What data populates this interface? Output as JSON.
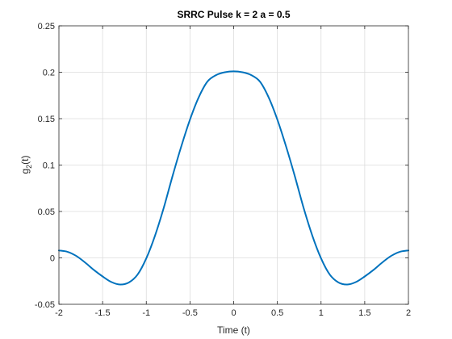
{
  "chart_data": {
    "type": "line",
    "title": "SRRC Pulse k = 2  a = 0.5",
    "xlabel": "Time (t)",
    "ylabel": "g",
    "ylabel_sub": "2",
    "ylabel_suffix": "(t)",
    "xlim": [
      -2,
      2
    ],
    "ylim": [
      -0.05,
      0.25
    ],
    "x_ticks": [
      -2,
      -1.5,
      -1,
      -0.5,
      0,
      0.5,
      1,
      1.5,
      2
    ],
    "x_tick_labels": [
      "-2",
      "-1.5",
      "-1",
      "-0.5",
      "0",
      "0.5",
      "1",
      "1.5",
      "2"
    ],
    "y_ticks": [
      -0.05,
      0,
      0.05,
      0.1,
      0.15,
      0.2,
      0.25
    ],
    "y_tick_labels": [
      "-0.05",
      "0",
      "0.05",
      "0.1",
      "0.15",
      "0.2",
      "0.25"
    ],
    "grid": true,
    "line_color": "#0072BD",
    "series": [
      {
        "x": [
          -2,
          -1.9,
          -1.8,
          -1.7,
          -1.6,
          -1.5,
          -1.4,
          -1.3,
          -1.2,
          -1.1,
          -1.0,
          -0.9,
          -0.8,
          -0.7,
          -0.6,
          -0.5,
          -0.4,
          -0.3,
          -0.2,
          -0.1,
          0,
          0.1,
          0.2,
          0.3,
          0.4,
          0.5,
          0.6,
          0.7,
          0.8,
          0.9,
          1.0,
          1.1,
          1.2,
          1.3,
          1.4,
          1.5,
          1.6,
          1.7,
          1.8,
          1.9,
          2
        ],
        "y": [
          0.008,
          0.0065,
          0.002,
          -0.005,
          -0.013,
          -0.02,
          -0.026,
          -0.0287,
          -0.0265,
          -0.018,
          -0.0005,
          0.024,
          0.054,
          0.088,
          0.12,
          0.149,
          0.173,
          0.19,
          0.197,
          0.2,
          0.201,
          0.2,
          0.197,
          0.19,
          0.173,
          0.149,
          0.12,
          0.088,
          0.054,
          0.024,
          -0.0005,
          -0.018,
          -0.0265,
          -0.0287,
          -0.026,
          -0.02,
          -0.013,
          -0.005,
          0.002,
          0.0065,
          0.008
        ]
      }
    ]
  }
}
